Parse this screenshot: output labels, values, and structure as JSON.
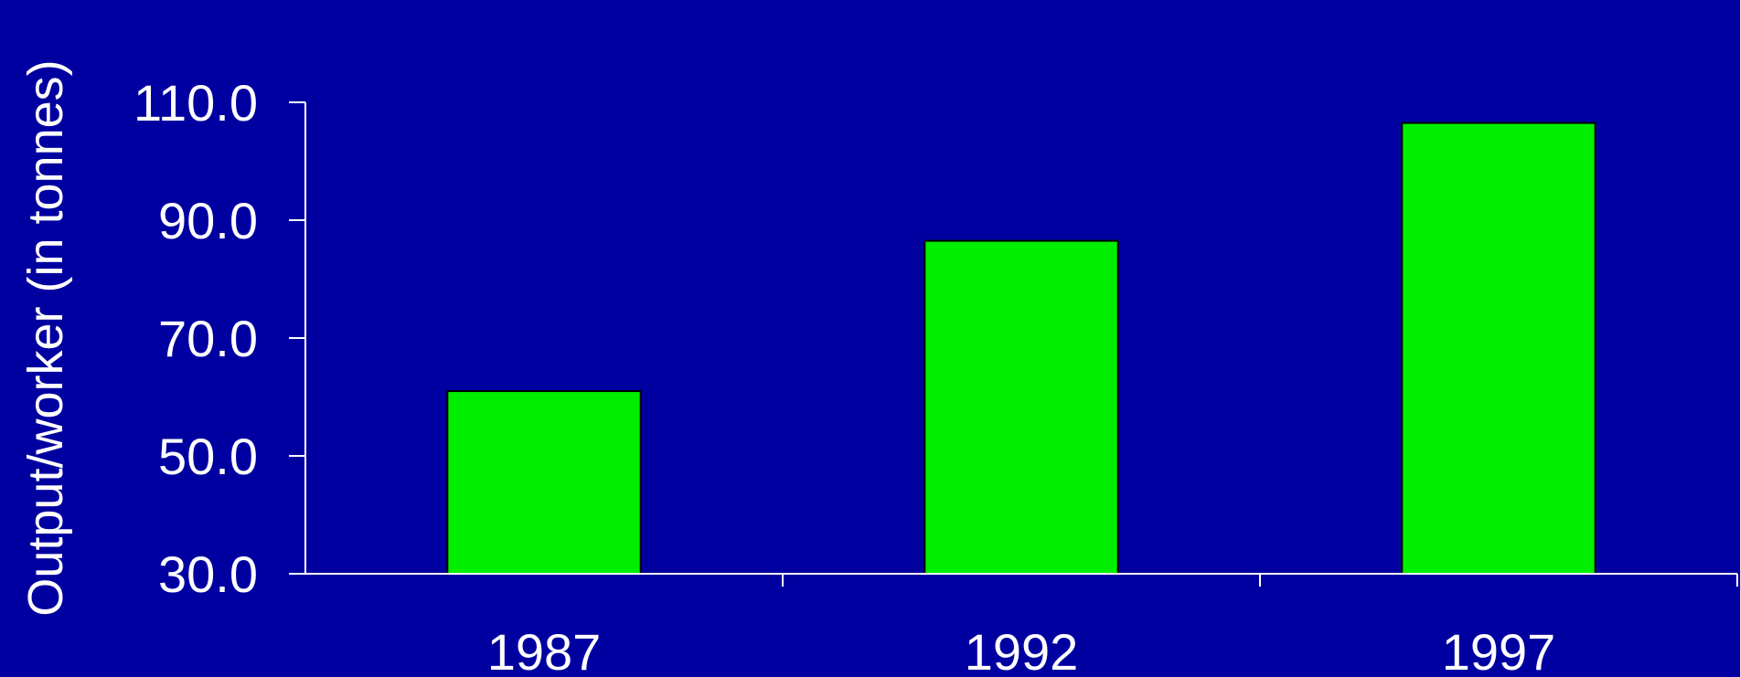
{
  "colors": {
    "background": "#0000a0",
    "bar_fill": "#00ee00",
    "axis": "#ffffff",
    "text": "#ffffff"
  },
  "chart_data": {
    "type": "bar",
    "title": "",
    "xlabel": "",
    "ylabel": "Output/worker (in tonnes)",
    "categories": [
      "1987",
      "1992",
      "1997"
    ],
    "values": [
      61.0,
      86.5,
      106.5
    ],
    "ylim": [
      30,
      110
    ],
    "yticks": [
      "30.0",
      "50.0",
      "70.0",
      "90.0",
      "110.0"
    ],
    "grid": false,
    "legend": "none"
  }
}
